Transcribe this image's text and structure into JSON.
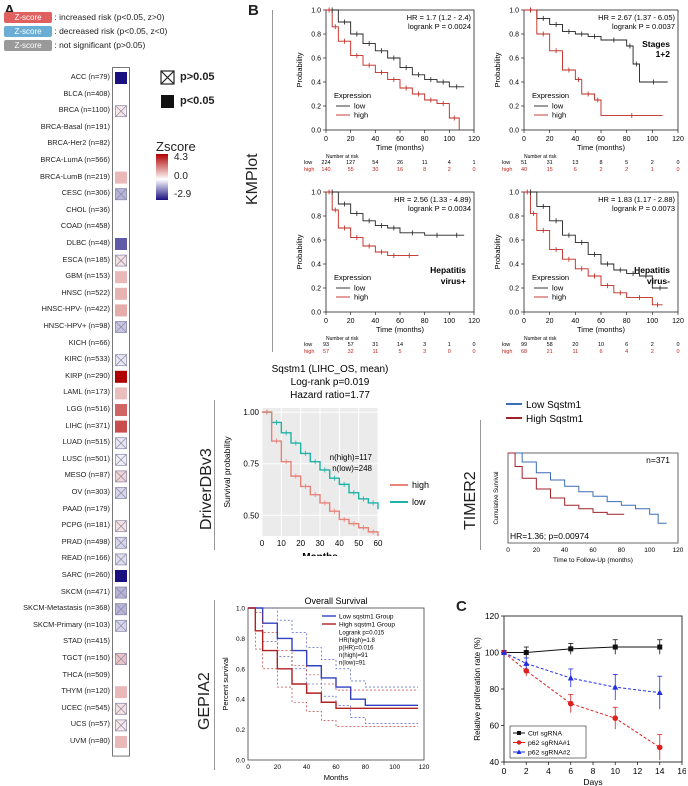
{
  "panels": {
    "a": "A",
    "b": "B",
    "c": "C"
  },
  "legend_top": [
    {
      "badge": "Z-score",
      "text": ": increased risk (p<0.05, z>0)",
      "color": "#e06060"
    },
    {
      "badge": "Z-score",
      "text": ": decreased risk (p<0.05, z<0)",
      "color": "#6aaed6"
    },
    {
      "badge": "Z-score",
      "text": ": not significant (p>0.05)",
      "color": "#9a9a9a"
    }
  ],
  "sig_legend": {
    "ns": "p>0.05",
    "sig": "p<0.05"
  },
  "zscore_legend": {
    "title": "Zscore",
    "max": "4.3",
    "mid": "0.0",
    "min": "-2.9"
  },
  "heatmap": {
    "rows": [
      {
        "label": "ACC (n=79)",
        "z": -2.9,
        "sig": true
      },
      {
        "label": "BLCA (n=408)",
        "z": 0.0,
        "sig": false,
        "blank": true
      },
      {
        "label": "BRCA (n=1100)",
        "z": 0.4,
        "sig": false
      },
      {
        "label": "BRCA-Basal (n=191)",
        "z": 0.1,
        "sig": false,
        "blank": true
      },
      {
        "label": "BRCA-Her2 (n=82)",
        "z": 0.1,
        "sig": false,
        "blank": true
      },
      {
        "label": "BRCA-LumA (n=566)",
        "z": 0.2,
        "sig": false,
        "blank": true
      },
      {
        "label": "BRCA-LumB (n=219)",
        "z": 1.2,
        "sig": true
      },
      {
        "label": "CESC (n=306)",
        "z": -0.9,
        "sig": false
      },
      {
        "label": "CHOL (n=36)",
        "z": 0.1,
        "sig": false,
        "blank": true
      },
      {
        "label": "COAD (n=458)",
        "z": 0.05,
        "sig": false,
        "blank": true
      },
      {
        "label": "DLBC (n=48)",
        "z": -2.0,
        "sig": true
      },
      {
        "label": "ESCA (n=185)",
        "z": 0.5,
        "sig": false
      },
      {
        "label": "GBM (n=153)",
        "z": 1.2,
        "sig": true
      },
      {
        "label": "HNSC (n=522)",
        "z": 1.3,
        "sig": true
      },
      {
        "label": "HNSC-HPV- (n=422)",
        "z": 1.4,
        "sig": true
      },
      {
        "label": "HNSC-HPV+ (n=98)",
        "z": -0.7,
        "sig": false
      },
      {
        "label": "KICH (n=66)",
        "z": 0.1,
        "sig": false,
        "blank": true
      },
      {
        "label": "KIRC (n=533)",
        "z": -0.3,
        "sig": false
      },
      {
        "label": "KIRP (n=290)",
        "z": 4.3,
        "sig": true
      },
      {
        "label": "LAML (n=173)",
        "z": 1.1,
        "sig": true
      },
      {
        "label": "LGG (n=516)",
        "z": 2.6,
        "sig": true
      },
      {
        "label": "LIHC (n=371)",
        "z": 3.0,
        "sig": true
      },
      {
        "label": "LUAD (n=515)",
        "z": -0.3,
        "sig": false
      },
      {
        "label": "LUSC (n=501)",
        "z": -0.2,
        "sig": false
      },
      {
        "label": "MESO (n=87)",
        "z": 0.7,
        "sig": false
      },
      {
        "label": "OV (n=303)",
        "z": -0.5,
        "sig": false
      },
      {
        "label": "PAAD (n=179)",
        "z": 0.2,
        "sig": false,
        "blank": true
      },
      {
        "label": "PCPG (n=181)",
        "z": 0.5,
        "sig": false
      },
      {
        "label": "PRAD (n=498)",
        "z": -0.5,
        "sig": false
      },
      {
        "label": "READ (n=166)",
        "z": -0.4,
        "sig": false
      },
      {
        "label": "SARC (n=260)",
        "z": -2.9,
        "sig": true
      },
      {
        "label": "SKCM (n=471)",
        "z": -0.9,
        "sig": false
      },
      {
        "label": "SKCM-Metastasis (n=368)",
        "z": -0.9,
        "sig": false
      },
      {
        "label": "SKCM-Primary (n=103)",
        "z": -0.5,
        "sig": false
      },
      {
        "label": "STAD (n=415)",
        "z": 0.1,
        "sig": false,
        "blank": true
      },
      {
        "label": "TGCT (n=150)",
        "z": 1.0,
        "sig": false
      },
      {
        "label": "THCA (n=509)",
        "z": 0.1,
        "sig": false,
        "blank": true
      },
      {
        "label": "THYM (n=120)",
        "z": 1.2,
        "sig": true
      },
      {
        "label": "UCEC (n=545)",
        "z": 0.5,
        "sig": false
      },
      {
        "label": "UCS (n=57)",
        "z": 0.4,
        "sig": false
      },
      {
        "label": "UVM (n=80)",
        "z": 1.2,
        "sig": true
      }
    ]
  },
  "side_labels": {
    "kmplot": "KMPlot",
    "driverdb": "DriverDBv3",
    "timer": "TIMER2",
    "gepia": "GEPIA2"
  },
  "km_common": {
    "ylabel": "Probability",
    "xlabel": "Time (months)",
    "expression": "Expression",
    "low": "low",
    "high": "high",
    "risk_title": "Number at risk",
    "xticks": [
      "0",
      "20",
      "40",
      "60",
      "80",
      "100",
      "120"
    ],
    "yticks": [
      "0.0",
      "0.2",
      "0.4",
      "0.6",
      "0.8",
      "1.0"
    ]
  },
  "km_plots": [
    {
      "hr": "HR = 1.7 (1.2 - 2.4)",
      "p": "logrank P = 0.0024",
      "note1": "",
      "note2": "",
      "risk_low": [
        "224",
        "127",
        "54",
        "26",
        "11",
        "4",
        "1"
      ],
      "risk_high": [
        "140",
        "55",
        "30",
        "16",
        "8",
        "2",
        "0"
      ],
      "low": [
        [
          0,
          1
        ],
        [
          10,
          0.9
        ],
        [
          20,
          0.8
        ],
        [
          30,
          0.72
        ],
        [
          40,
          0.66
        ],
        [
          50,
          0.6
        ],
        [
          60,
          0.52
        ],
        [
          70,
          0.46
        ],
        [
          80,
          0.42
        ],
        [
          90,
          0.4
        ],
        [
          100,
          0.36
        ],
        [
          112,
          0.36
        ]
      ],
      "high": [
        [
          0,
          1
        ],
        [
          5,
          0.86
        ],
        [
          10,
          0.74
        ],
        [
          20,
          0.62
        ],
        [
          30,
          0.54
        ],
        [
          40,
          0.48
        ],
        [
          50,
          0.42
        ],
        [
          60,
          0.35
        ],
        [
          70,
          0.3
        ],
        [
          80,
          0.25
        ],
        [
          90,
          0.22
        ],
        [
          100,
          0.1
        ],
        [
          108,
          0.0
        ]
      ]
    },
    {
      "hr": "HR = 2.67 (1.37 - 6.05)",
      "p": "logrank P = 0.0037",
      "note1": "Stages",
      "note2": "1+2",
      "risk_low": [
        "51",
        "31",
        "13",
        "8",
        "5",
        "2",
        "0"
      ],
      "risk_high": [
        "40",
        "15",
        "6",
        "2",
        "2",
        "1",
        "0"
      ],
      "low": [
        [
          0,
          1
        ],
        [
          10,
          0.93
        ],
        [
          20,
          0.88
        ],
        [
          30,
          0.82
        ],
        [
          40,
          0.8
        ],
        [
          50,
          0.78
        ],
        [
          60,
          0.75
        ],
        [
          80,
          0.7
        ],
        [
          85,
          0.55
        ],
        [
          90,
          0.4
        ],
        [
          112,
          0.4
        ]
      ],
      "high": [
        [
          0,
          1
        ],
        [
          10,
          0.8
        ],
        [
          20,
          0.66
        ],
        [
          30,
          0.5
        ],
        [
          40,
          0.42
        ],
        [
          45,
          0.3
        ],
        [
          55,
          0.25
        ],
        [
          60,
          0.12
        ],
        [
          108,
          0.12
        ]
      ]
    },
    {
      "hr": "HR = 2.56 (1.33 - 4.89)",
      "p": "logrank P = 0.0034",
      "note1": "Hepatitis",
      "note2": "virus+",
      "risk_low": [
        "93",
        "57",
        "31",
        "14",
        "3",
        "1",
        "0"
      ],
      "risk_high": [
        "57",
        "32",
        "11",
        "5",
        "3",
        "0",
        "0"
      ],
      "low": [
        [
          0,
          1
        ],
        [
          10,
          0.9
        ],
        [
          20,
          0.82
        ],
        [
          30,
          0.76
        ],
        [
          40,
          0.72
        ],
        [
          50,
          0.7
        ],
        [
          60,
          0.66
        ],
        [
          80,
          0.64
        ],
        [
          100,
          0.64
        ],
        [
          112,
          0.64
        ]
      ],
      "high": [
        [
          0,
          1
        ],
        [
          5,
          0.85
        ],
        [
          10,
          0.7
        ],
        [
          20,
          0.62
        ],
        [
          30,
          0.55
        ],
        [
          40,
          0.5
        ],
        [
          50,
          0.47
        ],
        [
          60,
          0.47
        ],
        [
          75,
          0.47
        ]
      ]
    },
    {
      "hr": "HR = 1.83 (1.17 - 2.88)",
      "p": "logrank P = 0.0073",
      "note1": "Hepatitis",
      "note2": "virus-",
      "risk_low": [
        "99",
        "58",
        "20",
        "10",
        "6",
        "2",
        "0"
      ],
      "risk_high": [
        "68",
        "21",
        "11",
        "6",
        "4",
        "2",
        "0"
      ],
      "low": [
        [
          0,
          1
        ],
        [
          10,
          0.88
        ],
        [
          20,
          0.76
        ],
        [
          30,
          0.64
        ],
        [
          40,
          0.58
        ],
        [
          50,
          0.48
        ],
        [
          60,
          0.4
        ],
        [
          70,
          0.35
        ],
        [
          80,
          0.32
        ],
        [
          90,
          0.3
        ],
        [
          100,
          0.2
        ],
        [
          112,
          0.2
        ]
      ],
      "high": [
        [
          0,
          1
        ],
        [
          5,
          0.82
        ],
        [
          10,
          0.68
        ],
        [
          20,
          0.52
        ],
        [
          30,
          0.44
        ],
        [
          40,
          0.36
        ],
        [
          50,
          0.3
        ],
        [
          60,
          0.22
        ],
        [
          70,
          0.16
        ],
        [
          80,
          0.12
        ],
        [
          100,
          0.06
        ],
        [
          108,
          0.06
        ]
      ]
    }
  ],
  "driverdb": {
    "title": "Sqstm1 (LIHC_OS, mean)",
    "logrank": "Log-rank p=0.019",
    "hr": "Hazard ratio=1.77",
    "ylabel": "Survival probability",
    "xlabel": "Months",
    "nhigh": "n(high)=117",
    "nlow": "n(low)=248",
    "leg_high": "high",
    "leg_low": "low",
    "high_color": "#e8837a",
    "low_color": "#1fb3a6",
    "xticks": [
      "0",
      "10",
      "20",
      "30",
      "40",
      "50",
      "60"
    ],
    "yticks": [
      "0.50",
      "0.75",
      "1.00"
    ],
    "high": [
      [
        0,
        1
      ],
      [
        5,
        0.86
      ],
      [
        10,
        0.76
      ],
      [
        15,
        0.69
      ],
      [
        20,
        0.64
      ],
      [
        25,
        0.6
      ],
      [
        30,
        0.56
      ],
      [
        35,
        0.52
      ],
      [
        40,
        0.48
      ],
      [
        45,
        0.46
      ],
      [
        50,
        0.44
      ],
      [
        55,
        0.42
      ],
      [
        60,
        0.4
      ]
    ],
    "low": [
      [
        0,
        1
      ],
      [
        5,
        0.95
      ],
      [
        10,
        0.9
      ],
      [
        15,
        0.85
      ],
      [
        20,
        0.8
      ],
      [
        25,
        0.76
      ],
      [
        30,
        0.72
      ],
      [
        35,
        0.68
      ],
      [
        40,
        0.65
      ],
      [
        45,
        0.61
      ],
      [
        50,
        0.58
      ],
      [
        55,
        0.56
      ],
      [
        60,
        0.53
      ]
    ]
  },
  "timer": {
    "leg_low": "Low Sqstm1",
    "leg_high": "High Sqstm1",
    "n": "n=371",
    "stats": "HR=1.36; p=0.00974",
    "ylabel": "Cumulative Survival",
    "xlabel": "Time to Follow-Up (months)",
    "xticks": [
      "0",
      "20",
      "40",
      "60",
      "80",
      "100",
      "120"
    ],
    "low_color": "#3a6fb5",
    "high_color": "#a0222a",
    "low": [
      [
        0,
        1
      ],
      [
        10,
        0.9
      ],
      [
        20,
        0.78
      ],
      [
        30,
        0.7
      ],
      [
        40,
        0.63
      ],
      [
        50,
        0.57
      ],
      [
        60,
        0.52
      ],
      [
        70,
        0.46
      ],
      [
        80,
        0.42
      ],
      [
        90,
        0.38
      ],
      [
        100,
        0.32
      ],
      [
        106,
        0.22
      ],
      [
        112,
        0.22
      ]
    ],
    "high": [
      [
        0,
        1
      ],
      [
        5,
        0.85
      ],
      [
        10,
        0.72
      ],
      [
        20,
        0.6
      ],
      [
        30,
        0.5
      ],
      [
        40,
        0.42
      ],
      [
        50,
        0.38
      ],
      [
        60,
        0.34
      ],
      [
        70,
        0.32
      ],
      [
        82,
        0.32
      ]
    ]
  },
  "gepia": {
    "title": "Overall Survival",
    "leg_low": "Low sqstm1 Group",
    "leg_high": "High sqstm1 Group",
    "stats": [
      "Logrank p=0.015",
      "HR(high)=1.8",
      "p(HR)=0.016",
      "n(high)=91",
      "n(low)=91"
    ],
    "ylabel": "Percent survival",
    "xlabel": "Months",
    "xticks": [
      "0",
      "20",
      "40",
      "60",
      "80",
      "100",
      "120"
    ],
    "yticks": [
      "0.0",
      "0.2",
      "0.4",
      "0.6",
      "0.8",
      "1.0"
    ],
    "low": [
      [
        0,
        1
      ],
      [
        10,
        0.9
      ],
      [
        20,
        0.8
      ],
      [
        30,
        0.72
      ],
      [
        40,
        0.62
      ],
      [
        50,
        0.54
      ],
      [
        60,
        0.48
      ],
      [
        70,
        0.4
      ],
      [
        80,
        0.36
      ],
      [
        100,
        0.36
      ],
      [
        116,
        0.36
      ]
    ],
    "high": [
      [
        0,
        1
      ],
      [
        5,
        0.85
      ],
      [
        10,
        0.72
      ],
      [
        20,
        0.6
      ],
      [
        30,
        0.5
      ],
      [
        40,
        0.44
      ],
      [
        50,
        0.38
      ],
      [
        60,
        0.34
      ],
      [
        80,
        0.34
      ],
      [
        116,
        0.34
      ]
    ]
  },
  "chart_data": {
    "type": "line",
    "title": "",
    "xlabel": "Days",
    "ylabel": "Relative proliferation rate (%)",
    "xlim": [
      0,
      16
    ],
    "ylim": [
      40,
      120
    ],
    "xticks": [
      "0",
      "2",
      "4",
      "6",
      "8",
      "10",
      "12",
      "14",
      "16"
    ],
    "yticks": [
      "40",
      "60",
      "80",
      "100",
      "120"
    ],
    "x": [
      0,
      2,
      6,
      10,
      14
    ],
    "series": [
      {
        "name": "Ctrl sgRNA",
        "values": [
          100,
          100,
          102,
          103,
          103
        ],
        "err": [
          0,
          3,
          3,
          4,
          4
        ],
        "color": "#111111",
        "marker": "square",
        "dash": false
      },
      {
        "name": "p62 sgRNA#1",
        "values": [
          100,
          90,
          72,
          64,
          48
        ],
        "err": [
          0,
          3,
          5,
          6,
          7
        ],
        "color": "#e02020",
        "marker": "circle",
        "dash": true
      },
      {
        "name": "p62 sgRNA#2",
        "values": [
          100,
          94,
          86,
          81,
          78
        ],
        "err": [
          0,
          3,
          5,
          7,
          9
        ],
        "color": "#2030e0",
        "marker": "triangle",
        "dash": true
      }
    ]
  }
}
